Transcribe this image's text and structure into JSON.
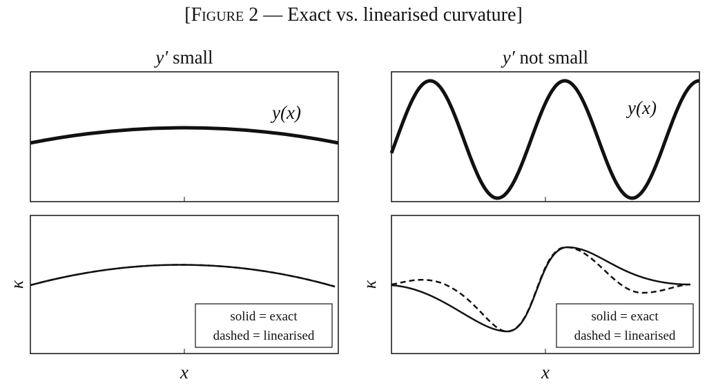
{
  "header": {
    "open": "[",
    "caps": "Figure",
    "rest": " 2 — Exact vs. linearised curvature]"
  },
  "panels": [
    {
      "title_var": "y′",
      "title_text": " small",
      "curve_label": "y(x)",
      "y_label": "κ",
      "x_label": "x",
      "legend": [
        "solid = exact",
        "dashed = linearised"
      ]
    },
    {
      "title_var": "y′",
      "title_text": " not small",
      "curve_label": "y(x)",
      "y_label": "κ",
      "x_label": "x",
      "legend": [
        "solid = exact",
        "dashed = linearised"
      ]
    }
  ]
}
